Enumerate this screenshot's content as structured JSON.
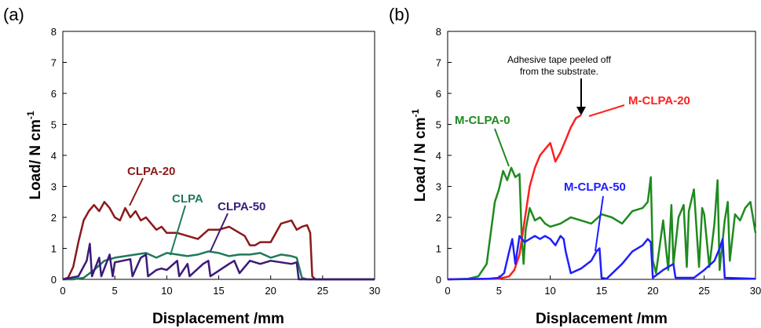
{
  "chart_data": [
    {
      "panel_label": "(a)",
      "type": "line",
      "xlabel": "Displacement /mm",
      "ylabel": "Load/ N cm",
      "ylabel_sup": "-1",
      "xlim": [
        0,
        30
      ],
      "ylim": [
        0,
        8
      ],
      "xticks": [
        0,
        5,
        10,
        15,
        20,
        25,
        30
      ],
      "yticks": [
        0,
        1,
        2,
        3,
        4,
        5,
        6,
        7,
        8
      ],
      "grid": false,
      "series": [
        {
          "name": "CLPA-20",
          "color": "#8b1a1a",
          "x": [
            0,
            0.5,
            1,
            1.5,
            2,
            2.5,
            3,
            3.5,
            4,
            4.5,
            5,
            5.5,
            6,
            6.5,
            7,
            7.5,
            8,
            8.5,
            9,
            9.5,
            10,
            11,
            12,
            13,
            14,
            15,
            16,
            17,
            17.5,
            18,
            18.5,
            19,
            20,
            21,
            22,
            22.5,
            23,
            23.5,
            23.8,
            24,
            24.3,
            30
          ],
          "y": [
            0,
            0.05,
            0.4,
            1.2,
            1.9,
            2.2,
            2.4,
            2.2,
            2.5,
            2.3,
            2.0,
            1.9,
            2.3,
            2.0,
            2.2,
            1.9,
            2.0,
            1.8,
            1.6,
            1.7,
            1.5,
            1.5,
            1.4,
            1.3,
            1.6,
            1.6,
            1.7,
            1.5,
            1.4,
            1.1,
            1.1,
            1.2,
            1.2,
            1.8,
            1.9,
            1.6,
            1.7,
            1.75,
            1.5,
            0.1,
            0,
            0
          ]
        },
        {
          "name": "CLPA",
          "color": "#1f7a5a",
          "x": [
            0,
            1,
            2,
            3,
            4,
            5,
            6,
            7,
            8,
            9,
            10,
            11,
            12,
            13,
            14,
            15,
            16,
            17,
            18,
            19,
            20,
            21,
            22,
            22.5,
            23,
            23.5,
            30
          ],
          "y": [
            0,
            0,
            0.05,
            0.3,
            0.6,
            0.7,
            0.75,
            0.8,
            0.85,
            0.7,
            0.85,
            0.8,
            0.75,
            0.8,
            0.9,
            0.85,
            0.75,
            0.8,
            0.8,
            0.85,
            0.7,
            0.8,
            0.75,
            0.7,
            0.05,
            0,
            0
          ]
        },
        {
          "name": "CLPA-50",
          "color": "#3b1a78",
          "x": [
            0,
            1.5,
            2.3,
            2.6,
            2.8,
            3.5,
            3.7,
            4.5,
            4.8,
            5.0,
            6.5,
            6.7,
            7.5,
            8.0,
            8.2,
            9.0,
            9.5,
            10.0,
            11,
            11.2,
            12,
            12.2,
            13.5,
            14,
            14.2,
            16,
            16.5,
            17,
            18,
            19,
            20,
            21,
            22,
            22.5,
            22.7,
            30
          ],
          "y": [
            0,
            0.1,
            0.6,
            1.15,
            0.1,
            0.7,
            0.1,
            0.8,
            0.1,
            0.55,
            0.65,
            0.1,
            0.7,
            0.8,
            0.1,
            0.3,
            0.35,
            0.3,
            0.6,
            0.1,
            0.5,
            0.1,
            0.5,
            0.6,
            0.1,
            0.5,
            0.6,
            0.2,
            0.6,
            0.5,
            0.6,
            0.55,
            0.5,
            0.55,
            0,
            0
          ]
        }
      ],
      "label_texts": {
        "clpa20": "CLPA-20",
        "clpa": "CLPA",
        "clpa50": "CLPA-50"
      }
    },
    {
      "panel_label": "(b)",
      "type": "line",
      "xlabel": "Displacement /mm",
      "ylabel": "Load / N cm",
      "ylabel_sup": "-1",
      "xlim": [
        0,
        30
      ],
      "ylim": [
        0,
        8
      ],
      "xticks": [
        0,
        5,
        10,
        15,
        20,
        25,
        30
      ],
      "yticks": [
        0,
        1,
        2,
        3,
        4,
        5,
        6,
        7,
        8
      ],
      "grid": false,
      "annotation": "Adhesive tape peeled off from the substrate.",
      "annotation_lines": [
        "Adhesive tape peeled off",
        "from the substrate."
      ],
      "series": [
        {
          "name": "M-CLPA-0",
          "color": "#1f8a1f",
          "x": [
            0,
            2,
            3,
            3.8,
            4.2,
            4.6,
            5,
            5.4,
            5.8,
            6.2,
            6.6,
            7,
            7.2,
            7.4,
            7.6,
            8,
            8.5,
            9,
            9.5,
            10,
            11,
            12,
            13,
            14,
            15,
            16,
            17,
            18,
            19,
            19.5,
            19.8,
            20,
            20.3,
            21,
            21.5,
            21.8,
            22,
            22.5,
            23,
            23.3,
            23.5,
            24,
            24.5,
            24.8,
            25,
            25.5,
            26,
            26.3,
            26.5,
            27,
            27.3,
            27.5,
            28,
            28.5,
            29,
            29.5,
            30
          ],
          "y": [
            0,
            0.02,
            0.1,
            0.5,
            1.5,
            2.5,
            2.9,
            3.5,
            3.2,
            3.6,
            3.3,
            3.4,
            1.5,
            0.5,
            1.6,
            2.3,
            1.9,
            2.0,
            1.8,
            1.7,
            1.8,
            2.0,
            1.9,
            1.8,
            2.1,
            2.0,
            1.8,
            2.2,
            2.3,
            2.5,
            3.3,
            0.6,
            0.2,
            1.9,
            0.3,
            2.4,
            0.5,
            2.0,
            2.4,
            0.4,
            2.2,
            2.9,
            0.4,
            2.3,
            2.1,
            0.4,
            1.8,
            3.2,
            0.3,
            1.9,
            2.5,
            0.6,
            2.1,
            1.9,
            2.3,
            2.5,
            1.5
          ]
        },
        {
          "name": "M-CLPA-20",
          "color": "#ff1f1f",
          "x": [
            0,
            5,
            6,
            6.5,
            7,
            7.5,
            8,
            8.5,
            9,
            9.5,
            10,
            10.5,
            11,
            11.5,
            12,
            12.5,
            13
          ],
          "y": [
            0,
            0.02,
            0.1,
            0.3,
            0.8,
            1.9,
            3.0,
            3.6,
            4.0,
            4.2,
            4.4,
            3.8,
            4.1,
            4.5,
            4.9,
            5.2,
            5.3
          ]
        },
        {
          "name": "M-CLPA-50",
          "color": "#1f1fff",
          "x": [
            0,
            4,
            5,
            5.5,
            6,
            6.3,
            6.6,
            7,
            7.5,
            8,
            8.5,
            9,
            9.5,
            10,
            10.5,
            11,
            11.3,
            11.5,
            12,
            13,
            14,
            14.5,
            14.8,
            15,
            15.5,
            17,
            18,
            19,
            19.5,
            19.8,
            20,
            21,
            22,
            22.2,
            24,
            25,
            26,
            26.5,
            26.8,
            27,
            30
          ],
          "y": [
            0,
            0.02,
            0.05,
            0.2,
            0.9,
            1.3,
            0.5,
            1.4,
            1.2,
            1.3,
            1.4,
            1.3,
            1.4,
            1.3,
            1.1,
            1.4,
            1.3,
            0.9,
            0.2,
            0.35,
            0.6,
            0.9,
            1.0,
            0.05,
            0.02,
            0.5,
            0.9,
            1.1,
            1.3,
            1.2,
            0.05,
            0.3,
            0.5,
            0.05,
            0.05,
            0.3,
            0.6,
            1.0,
            1.3,
            0.05,
            0.02
          ]
        }
      ],
      "label_texts": {
        "m0": "M-CLPA-0",
        "m20": "M-CLPA-20",
        "m50": "M-CLPA-50"
      }
    }
  ]
}
